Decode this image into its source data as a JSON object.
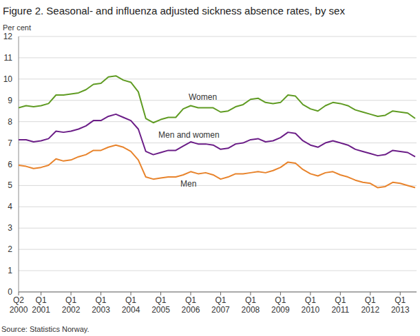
{
  "chart_data": {
    "type": "line",
    "title": "Figure 2. Seasonal- and influenza adjusted sickness absence rates, by sex",
    "y_label": "Per cent",
    "source": "Source: Statistics Norway.",
    "categories": [
      "Q2 2000",
      null,
      null,
      "Q1 2001",
      null,
      null,
      null,
      "Q1 2002",
      null,
      null,
      null,
      "Q1 2003",
      null,
      null,
      null,
      "Q1 2004",
      null,
      null,
      null,
      "Q1 2005",
      null,
      null,
      null,
      "Q1 2006",
      null,
      null,
      null,
      "Q1 2007",
      null,
      null,
      null,
      "Q1 2008",
      null,
      null,
      null,
      "Q1 2009",
      null,
      null,
      null,
      "Q1 2010",
      null,
      null,
      null,
      "Q1 2011",
      null,
      null,
      null,
      "Q1 2012",
      null,
      null,
      null,
      "Q1 2013",
      null,
      null
    ],
    "series": [
      {
        "name": "Women",
        "color": "#5f9b22",
        "values": [
          8.65,
          8.75,
          8.7,
          8.75,
          8.85,
          9.25,
          9.25,
          9.3,
          9.35,
          9.5,
          9.75,
          9.8,
          10.1,
          10.15,
          9.95,
          9.85,
          9.4,
          8.15,
          7.95,
          8.1,
          8.2,
          8.2,
          8.6,
          8.75,
          8.65,
          8.65,
          8.65,
          8.45,
          8.5,
          8.7,
          8.8,
          9.05,
          9.1,
          8.9,
          8.85,
          8.9,
          9.25,
          9.2,
          8.8,
          8.6,
          8.5,
          8.75,
          8.9,
          8.85,
          8.75,
          8.55,
          8.45,
          8.35,
          8.25,
          8.3,
          8.5,
          8.45,
          8.4,
          8.15
        ]
      },
      {
        "name": "Men and women",
        "color": "#6b1d87",
        "values": [
          7.15,
          7.15,
          7.05,
          7.1,
          7.2,
          7.55,
          7.5,
          7.55,
          7.65,
          7.8,
          8.05,
          8.05,
          8.25,
          8.35,
          8.2,
          8.05,
          7.65,
          6.6,
          6.45,
          6.55,
          6.65,
          6.65,
          6.85,
          7.05,
          6.95,
          6.95,
          6.9,
          6.7,
          6.75,
          6.95,
          7.0,
          7.15,
          7.2,
          7.05,
          7.1,
          7.25,
          7.5,
          7.45,
          7.1,
          6.9,
          6.8,
          7.0,
          7.1,
          7.0,
          6.9,
          6.7,
          6.6,
          6.5,
          6.4,
          6.45,
          6.65,
          6.6,
          6.55,
          6.35
        ]
      },
      {
        "name": "Men",
        "color": "#e8832b",
        "values": [
          5.95,
          5.9,
          5.8,
          5.85,
          5.95,
          6.25,
          6.15,
          6.2,
          6.35,
          6.45,
          6.65,
          6.65,
          6.8,
          6.9,
          6.8,
          6.6,
          6.2,
          5.4,
          5.3,
          5.35,
          5.4,
          5.4,
          5.5,
          5.65,
          5.55,
          5.6,
          5.5,
          5.3,
          5.4,
          5.55,
          5.55,
          5.6,
          5.65,
          5.6,
          5.7,
          5.85,
          6.1,
          6.05,
          5.75,
          5.55,
          5.45,
          5.6,
          5.65,
          5.5,
          5.4,
          5.25,
          5.15,
          5.1,
          4.9,
          4.95,
          5.15,
          5.1,
          5.0,
          4.9
        ]
      }
    ],
    "ylim": [
      0,
      12
    ],
    "yticks": [
      0,
      1,
      2,
      3,
      4,
      5,
      6,
      7,
      8,
      9,
      10,
      11,
      12
    ],
    "grid": true
  }
}
